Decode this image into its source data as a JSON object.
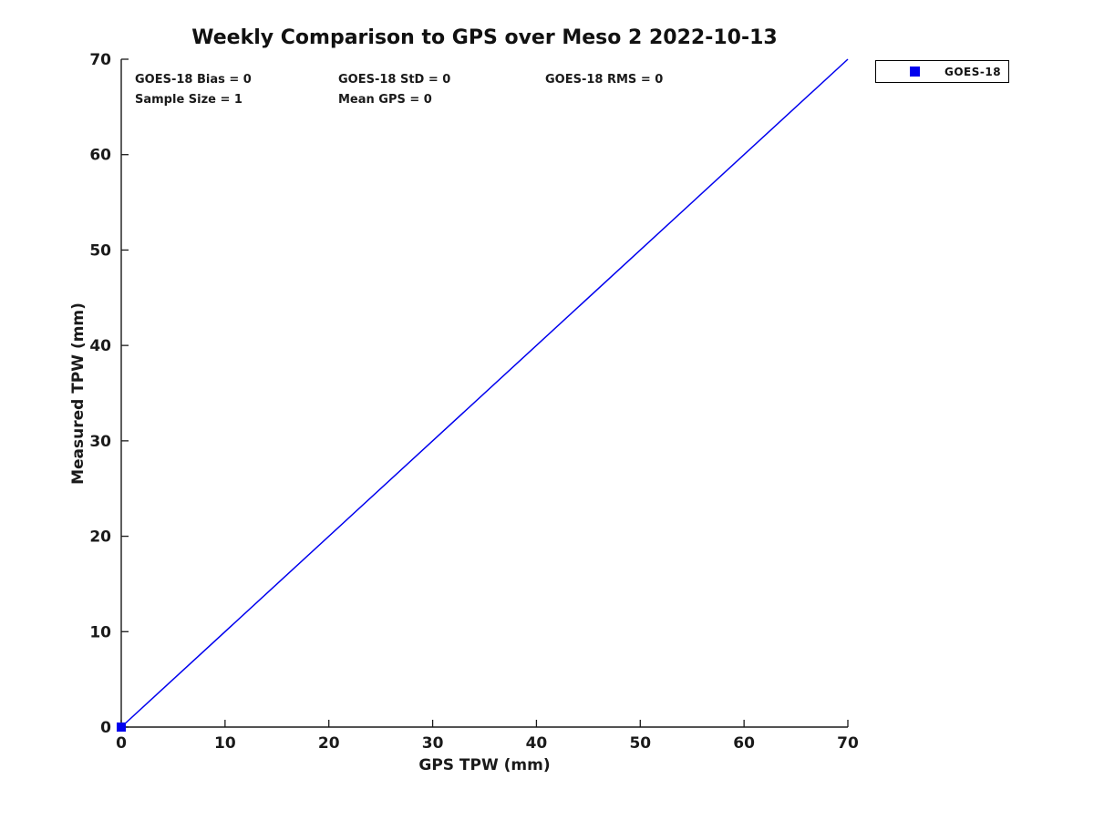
{
  "chart_data": {
    "type": "scatter",
    "title": "Weekly Comparison to GPS over Meso 2 2022-10-13",
    "xlabel": "GPS TPW (mm)",
    "ylabel": "Measured TPW (mm)",
    "xlim": [
      0,
      70
    ],
    "ylim": [
      0,
      70
    ],
    "xticks": [
      0,
      10,
      20,
      30,
      40,
      50,
      60,
      70
    ],
    "yticks": [
      0,
      10,
      20,
      30,
      40,
      50,
      60,
      70
    ],
    "grid": false,
    "series": [
      {
        "name": "GOES-18",
        "type": "scatter",
        "marker": "square",
        "color": "#0000ee",
        "points": [
          [
            0,
            0
          ]
        ]
      }
    ],
    "identity_line": {
      "x": [
        0,
        70
      ],
      "y": [
        0,
        70
      ],
      "color": "#0000ee"
    },
    "annotations": {
      "row1": [
        "GOES-18 Bias = 0",
        "GOES-18 StD = 0",
        "GOES-18 RMS = 0"
      ],
      "row2": [
        "Sample Size = 1",
        "Mean GPS = 0"
      ]
    },
    "legend": {
      "position": "outside-top-right",
      "entries": [
        {
          "label": "GOES-18",
          "marker": "square",
          "color": "#0000ee"
        }
      ]
    },
    "colors": {
      "axis": "#1a1a1a",
      "background": "#ffffff"
    }
  }
}
